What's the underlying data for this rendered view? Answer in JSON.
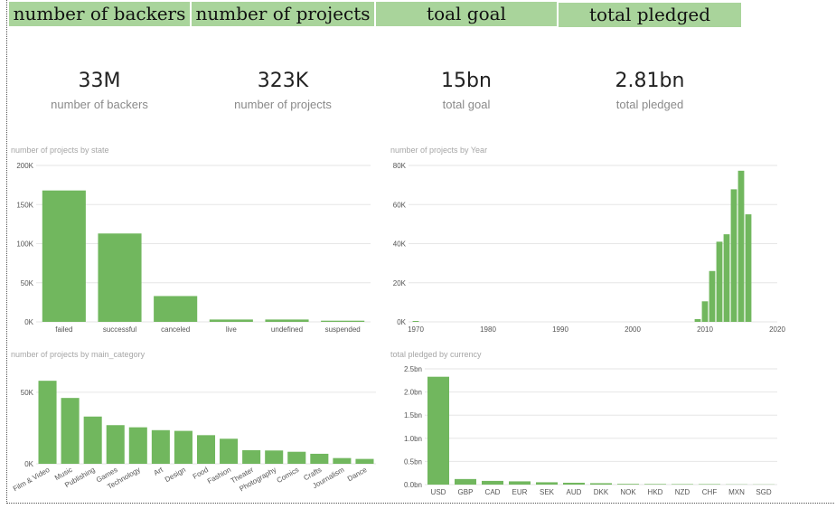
{
  "header_cards": [
    {
      "label": "number of backers"
    },
    {
      "label": "number of projects"
    },
    {
      "label": "toal goal"
    },
    {
      "label": "total pledged"
    }
  ],
  "kpis": [
    {
      "value": "33M",
      "label": "number of backers"
    },
    {
      "value": "323K",
      "label": "number of projects"
    },
    {
      "value": "15bn",
      "label": "total goal"
    },
    {
      "value": "2.81bn",
      "label": "total pledged"
    }
  ],
  "colors": {
    "bar": "#71b75e",
    "header": "#a9d49b",
    "grid": "#e6e6e6"
  },
  "chart_data": [
    {
      "type": "bar",
      "title": "number of projects by state",
      "categories": [
        "failed",
        "successful",
        "canceled",
        "live",
        "undefined",
        "suspended"
      ],
      "values": [
        168000,
        113000,
        33000,
        3000,
        3000,
        1500
      ],
      "yticks": [
        0,
        50000,
        100000,
        150000,
        200000
      ],
      "ytick_labels": [
        "0K",
        "50K",
        "100K",
        "150K",
        "200K"
      ],
      "ylim": [
        0,
        200000
      ],
      "grid": true
    },
    {
      "type": "bar",
      "title": "number of projects by Year",
      "x": [
        1970,
        2009,
        2010,
        2011,
        2012,
        2013,
        2014,
        2015,
        2016,
        2017
      ],
      "values": [
        100,
        1400,
        10500,
        26000,
        41000,
        44800,
        67800,
        77300,
        55000,
        0
      ],
      "xticks": [
        1970,
        1980,
        1990,
        2000,
        2010,
        2020
      ],
      "xlim": [
        1969,
        2020
      ],
      "yticks": [
        0,
        20000,
        40000,
        60000,
        80000
      ],
      "ytick_labels": [
        "0K",
        "20K",
        "40K",
        "60K",
        "80K"
      ],
      "ylim": [
        0,
        80000
      ],
      "grid": true
    },
    {
      "type": "bar",
      "title": "number of projects by main_category",
      "categories": [
        "Film & Video",
        "Music",
        "Publishing",
        "Games",
        "Technology",
        "Art",
        "Design",
        "Food",
        "Fashion",
        "Theater",
        "Photography",
        "Comics",
        "Crafts",
        "Journalism",
        "Dance"
      ],
      "values": [
        58000,
        46000,
        33000,
        27000,
        25500,
        23500,
        23000,
        20000,
        17500,
        9500,
        9300,
        8400,
        7000,
        4000,
        3400
      ],
      "yticks": [
        0,
        50000
      ],
      "ytick_labels": [
        "0K",
        "50K"
      ],
      "ylim": [
        0,
        60000
      ],
      "grid": true
    },
    {
      "type": "bar",
      "title": "total pledged by currency",
      "categories": [
        "USD",
        "GBP",
        "CAD",
        "EUR",
        "SEK",
        "AUD",
        "DKK",
        "NOK",
        "HKD",
        "NZD",
        "CHF",
        "MXN",
        "SGD"
      ],
      "values": [
        2.33,
        0.12,
        0.08,
        0.07,
        0.05,
        0.04,
        0.03,
        0.015,
        0.012,
        0.01,
        0.01,
        0.005,
        0.004
      ],
      "yticks": [
        0,
        0.5,
        1.0,
        1.5,
        2.0,
        2.5
      ],
      "ytick_labels": [
        "0.0bn",
        "0.5bn",
        "1.0bn",
        "1.5bn",
        "2.0bn",
        "2.5bn"
      ],
      "ylim": [
        0,
        2.5
      ],
      "grid": true
    }
  ]
}
